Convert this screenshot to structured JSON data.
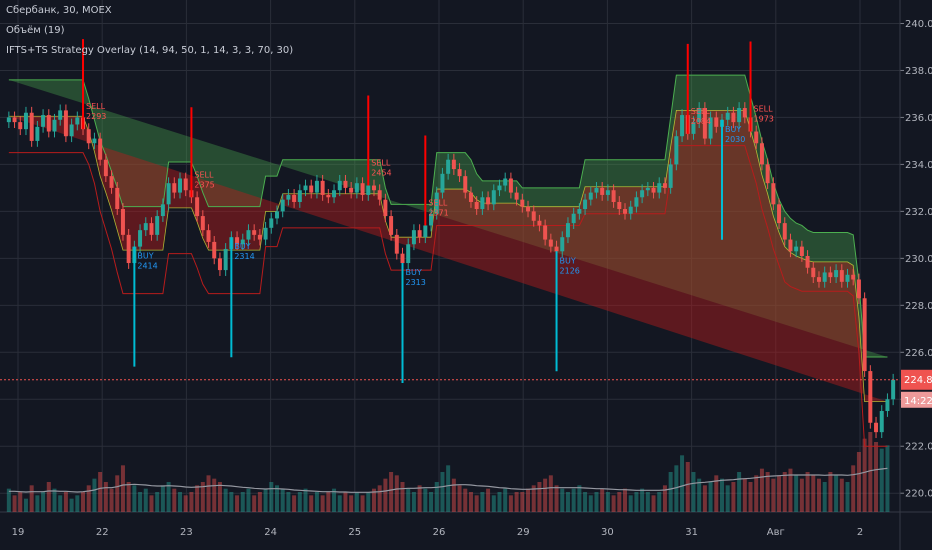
{
  "legend": {
    "symbol": "Сбербанк, 30, MOEX",
    "volume": "Объём (19)",
    "strategy": "IFTS+TS Strategy Overlay  (14, 94, 50, 1, 14, 3, 3, 70, 30)"
  },
  "colors": {
    "background": "#131722",
    "grid": "#2a2e39",
    "up": "#26a69a",
    "down": "#ef5350",
    "upper_band": "#4caf50",
    "lower_band": "#b71c1c",
    "signal": "#00bcd4",
    "sell": "#ff0000",
    "price_line": "#ef5350"
  },
  "chart_data": {
    "type": "line",
    "title": "Сбербанк, 30, MOEX",
    "ylim": [
      219.2,
      241.0
    ],
    "y_ticks": [
      220.0,
      222.0,
      224.0,
      226.0,
      228.0,
      230.0,
      232.0,
      234.0,
      236.0,
      238.0,
      240.0
    ],
    "x_tick_labels": [
      "19",
      "22",
      "23",
      "24",
      "25",
      "26",
      "29",
      "30",
      "31",
      "Авг",
      "2"
    ],
    "last_price": "224.83",
    "countdown": "14:22",
    "series": [
      {
        "name": "price",
        "values": [
          236.0,
          235.8,
          235.5,
          236.2,
          235.0,
          235.6,
          236.1,
          235.4,
          235.9,
          236.3,
          235.2,
          235.7,
          236.0,
          235.5,
          234.9,
          235.1,
          234.2,
          233.5,
          233.0,
          232.1,
          231.0,
          229.8,
          230.5,
          231.2,
          231.5,
          231.0,
          231.8,
          232.3,
          233.2,
          232.8,
          233.4,
          232.9,
          232.6,
          231.8,
          231.2,
          230.7,
          230.0,
          229.5,
          230.4,
          230.9,
          230.6,
          230.8,
          231.2,
          231.0,
          230.8,
          231.3,
          231.7,
          232.0,
          232.5,
          232.7,
          232.4,
          232.9,
          233.1,
          232.8,
          233.3,
          232.7,
          232.6,
          232.9,
          233.3,
          233.0,
          232.8,
          233.2,
          232.7,
          233.1,
          232.9,
          232.5,
          231.8,
          231.0,
          230.2,
          229.8,
          230.6,
          231.2,
          230.9,
          231.4,
          231.9,
          232.8,
          233.6,
          234.2,
          233.8,
          233.5,
          232.8,
          232.4,
          232.1,
          232.6,
          232.3,
          232.9,
          233.1,
          233.4,
          232.8,
          232.5,
          232.2,
          232.0,
          231.6,
          231.4,
          230.8,
          230.5,
          230.3,
          230.9,
          231.5,
          231.9,
          232.1,
          232.5,
          232.8,
          233.0,
          232.7,
          232.9,
          232.4,
          232.1,
          231.9,
          232.2,
          232.6,
          232.9,
          233.0,
          232.8,
          233.2,
          233.0,
          234.0,
          235.2,
          236.1,
          235.3,
          235.8,
          236.4,
          235.1,
          236.0,
          235.6,
          235.9,
          236.2,
          235.8,
          236.4,
          236.0,
          235.4,
          234.9,
          234.0,
          233.2,
          232.3,
          231.5,
          230.8,
          230.3,
          230.5,
          230.1,
          229.6,
          229.2,
          229.0,
          229.4,
          229.2,
          229.5,
          229.0,
          229.3,
          229.1,
          228.3,
          225.2,
          223.0,
          222.6,
          223.5,
          224.0,
          224.83
        ],
        "upper_band": [
          237.6,
          237.6,
          237.6,
          237.6,
          237.6,
          237.6,
          237.6,
          237.6,
          237.6,
          237.6,
          237.6,
          237.6,
          237.6,
          237.6,
          236.8,
          235.9,
          235.0,
          234.4,
          233.7,
          233.0,
          232.2,
          232.2,
          232.2,
          232.2,
          232.2,
          232.2,
          232.2,
          232.2,
          234.1,
          234.1,
          234.1,
          234.1,
          234.1,
          233.5,
          232.8,
          232.2,
          232.2,
          232.2,
          232.2,
          232.2,
          232.2,
          232.2,
          232.2,
          232.2,
          232.2,
          233.5,
          233.5,
          233.5,
          234.2,
          234.2,
          234.2,
          234.2,
          234.2,
          234.2,
          234.2,
          234.2,
          234.2,
          234.2,
          234.2,
          234.2,
          234.2,
          234.2,
          234.2,
          234.2,
          234.2,
          234.2,
          233.0,
          232.3,
          232.3,
          232.3,
          232.3,
          232.3,
          232.3,
          232.3,
          232.3,
          234.5,
          234.5,
          234.5,
          234.5,
          234.5,
          234.5,
          234.2,
          233.6,
          233.3,
          233.3,
          233.3,
          233.3,
          233.3,
          233.3,
          233.3,
          233.0,
          233.0,
          233.0,
          233.0,
          233.0,
          233.0,
          233.0,
          233.0,
          233.0,
          233.0,
          233.0,
          234.2,
          234.2,
          234.2,
          234.2,
          234.2,
          234.2,
          234.2,
          234.2,
          234.2,
          234.2,
          234.2,
          234.2,
          234.2,
          234.2,
          234.2,
          236.0,
          237.8,
          237.8,
          237.8,
          237.8,
          237.8,
          237.8,
          237.8,
          237.8,
          237.8,
          237.8,
          237.8,
          237.8,
          237.8,
          236.9,
          236.0,
          235.0,
          234.2,
          233.2,
          232.5,
          232.0,
          231.7,
          231.5,
          231.4,
          231.2,
          231.1,
          231.1,
          231.1,
          231.1,
          231.1,
          231.1,
          231.1,
          231.0,
          229.0,
          225.8,
          225.8,
          225.8,
          225.8,
          225.8
        ],
        "lower_band": [
          234.5,
          234.5,
          234.5,
          234.5,
          234.5,
          234.5,
          234.5,
          234.5,
          234.5,
          234.5,
          234.5,
          234.5,
          234.5,
          234.5,
          234.0,
          233.2,
          232.0,
          231.2,
          230.4,
          229.4,
          228.5,
          228.5,
          228.5,
          228.5,
          228.5,
          228.5,
          228.5,
          228.5,
          230.2,
          230.2,
          230.2,
          230.2,
          230.2,
          229.6,
          228.9,
          228.5,
          228.5,
          228.5,
          228.5,
          228.5,
          228.5,
          228.5,
          228.5,
          228.5,
          228.5,
          230.5,
          230.5,
          230.5,
          231.3,
          231.3,
          231.3,
          231.3,
          231.3,
          231.3,
          231.3,
          231.3,
          231.3,
          231.3,
          231.3,
          231.3,
          231.3,
          231.3,
          231.3,
          231.3,
          231.3,
          231.3,
          230.2,
          229.5,
          229.5,
          229.5,
          229.5,
          229.5,
          229.5,
          229.5,
          229.5,
          231.4,
          231.4,
          231.4,
          231.4,
          231.4,
          231.4,
          231.4,
          231.4,
          231.4,
          231.4,
          231.4,
          231.4,
          231.4,
          231.4,
          231.4,
          231.4,
          231.4,
          231.4,
          231.4,
          231.4,
          231.4,
          231.4,
          231.4,
          231.4,
          231.4,
          231.4,
          231.9,
          231.9,
          231.9,
          231.9,
          231.9,
          231.9,
          231.9,
          231.9,
          231.9,
          231.9,
          231.9,
          231.9,
          231.9,
          231.9,
          231.9,
          233.5,
          234.8,
          234.8,
          234.8,
          234.8,
          234.8,
          234.8,
          234.8,
          234.8,
          234.8,
          234.8,
          234.8,
          234.8,
          234.8,
          234.0,
          233.2,
          232.1,
          231.3,
          230.4,
          229.7,
          229.0,
          228.8,
          228.7,
          228.6,
          228.6,
          228.6,
          228.6,
          228.6,
          228.6,
          228.6,
          228.6,
          228.6,
          228.4,
          226.0,
          222.0,
          222.0,
          222.0,
          222.0,
          222.0
        ]
      }
    ],
    "volume": [
      7,
      5,
      6,
      4,
      8,
      5,
      6,
      9,
      7,
      5,
      6,
      4,
      5,
      6,
      8,
      10,
      12,
      9,
      7,
      11,
      14,
      9,
      8,
      6,
      7,
      5,
      6,
      8,
      9,
      7,
      6,
      5,
      6,
      8,
      9,
      11,
      10,
      9,
      7,
      6,
      5,
      6,
      7,
      5,
      6,
      7,
      9,
      8,
      7,
      6,
      5,
      6,
      7,
      5,
      6,
      5,
      6,
      7,
      5,
      6,
      5,
      6,
      5,
      6,
      7,
      8,
      10,
      12,
      11,
      9,
      7,
      6,
      8,
      7,
      6,
      9,
      12,
      14,
      10,
      8,
      7,
      6,
      5,
      6,
      7,
      5,
      6,
      7,
      5,
      6,
      6,
      7,
      8,
      9,
      10,
      11,
      8,
      7,
      6,
      7,
      8,
      6,
      5,
      6,
      7,
      6,
      5,
      6,
      7,
      5,
      6,
      7,
      6,
      5,
      6,
      8,
      12,
      14,
      17,
      15,
      12,
      10,
      8,
      9,
      11,
      10,
      8,
      9,
      12,
      10,
      9,
      11,
      13,
      12,
      10,
      11,
      12,
      13,
      11,
      10,
      12,
      11,
      10,
      9,
      12,
      11,
      10,
      9,
      14,
      18,
      22,
      24,
      21,
      19,
      20
    ],
    "volume_ma": [
      6.2,
      6.2,
      6.1,
      6.0,
      6.1,
      6.1,
      6.1,
      6.3,
      6.3,
      6.2,
      6.2,
      6.1,
      6.0,
      6.1,
      6.3,
      6.6,
      7.1,
      7.3,
      7.3,
      7.6,
      8.1,
      8.2,
      8.3,
      8.2,
      8.1,
      7.9,
      7.8,
      7.8,
      7.9,
      7.8,
      7.7,
      7.5,
      7.4,
      7.5,
      7.6,
      7.8,
      7.9,
      8.0,
      7.9,
      7.8,
      7.6,
      7.4,
      7.3,
      7.1,
      7.0,
      6.9,
      7.0,
      7.0,
      6.9,
      6.8,
      6.6,
      6.5,
      6.4,
      6.3,
      6.2,
      6.1,
      6.1,
      6.1,
      6.0,
      6.0,
      5.9,
      5.9,
      5.9,
      5.9,
      6.0,
      6.1,
      6.3,
      6.6,
      6.9,
      7.0,
      7.1,
      7.1,
      7.2,
      7.3,
      7.3,
      7.4,
      7.6,
      7.9,
      8.1,
      8.2,
      8.2,
      8.1,
      7.9,
      7.8,
      7.7,
      7.5,
      7.3,
      7.2,
      7.0,
      6.9,
      6.8,
      6.8,
      6.9,
      7.0,
      7.1,
      7.3,
      7.3,
      7.3,
      7.3,
      7.3,
      7.3,
      7.2,
      7.1,
      7.0,
      7.0,
      6.9,
      6.8,
      6.7,
      6.7,
      6.6,
      6.5,
      6.5,
      6.5,
      6.5,
      6.5,
      6.6,
      6.9,
      7.3,
      7.8,
      8.3,
      8.6,
      8.8,
      8.9,
      9.1,
      9.3,
      9.5,
      9.6,
      9.7,
      9.9,
      10.0,
      10.1,
      10.3,
      10.5,
      10.7,
      10.8,
      10.9,
      11.0,
      11.1,
      11.1,
      11.1,
      11.1,
      11.1,
      11.1,
      11.0,
      11.1,
      11.1,
      11.1,
      11.0,
      11.2,
      11.5,
      11.9,
      12.4,
      12.7,
      12.9,
      13.1
    ],
    "buy_markers": [
      {
        "index": 22,
        "label": "BUY",
        "value": "2414"
      },
      {
        "index": 39,
        "label": "BUY",
        "value": "2314"
      },
      {
        "index": 69,
        "label": "BUY",
        "value": "2313"
      },
      {
        "index": 96,
        "label": "BUY",
        "value": "2126"
      },
      {
        "index": 125,
        "label": "BUY",
        "value": "2030"
      }
    ],
    "sell_markers": [
      {
        "index": 13,
        "label": "SELL",
        "value": "2293"
      },
      {
        "index": 32,
        "label": "SELL",
        "value": "2375"
      },
      {
        "index": 63,
        "label": "SELL",
        "value": "2454"
      },
      {
        "index": 73,
        "label": "SELL",
        "value": "2371"
      },
      {
        "index": 119,
        "label": "SELL",
        "value": "2084"
      },
      {
        "index": 130,
        "label": "SELL",
        "value": "1973"
      }
    ]
  }
}
